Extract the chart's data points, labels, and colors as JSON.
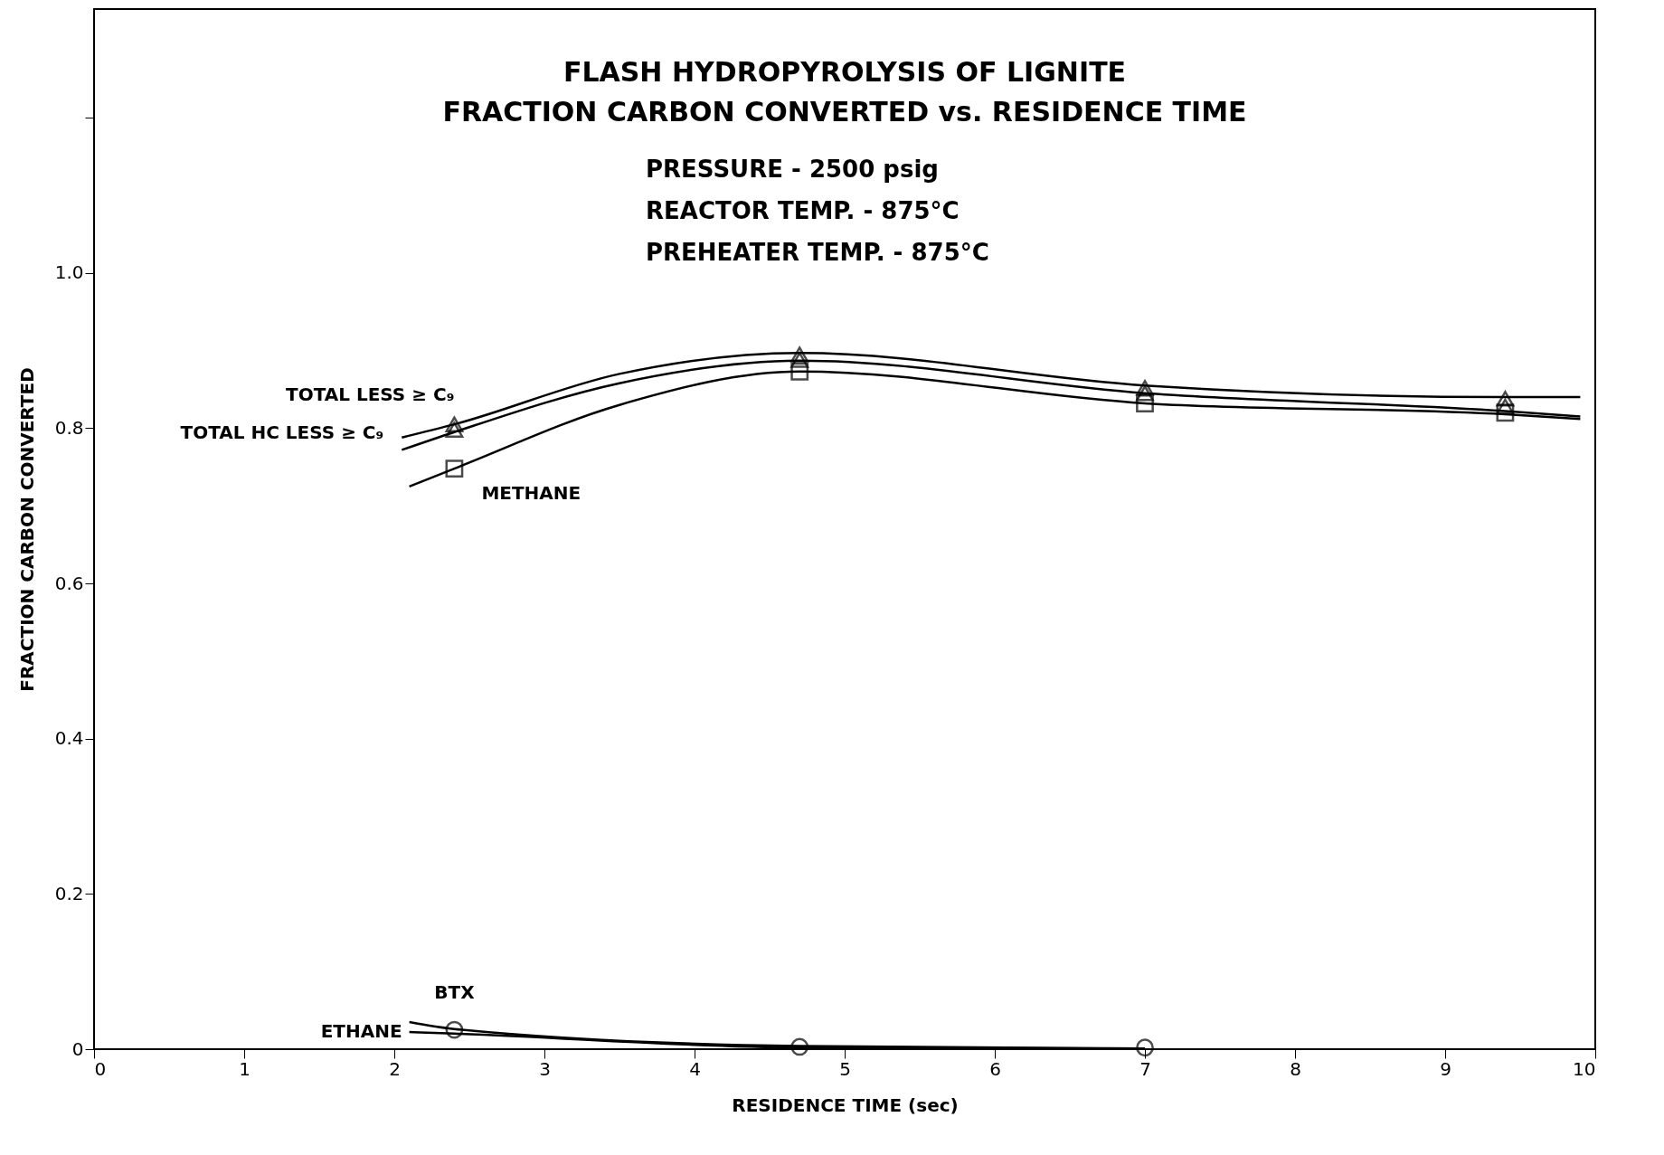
{
  "chart_data": {
    "type": "line",
    "title": [
      "FLASH HYDROPYROLYSIS OF LIGNITE",
      "FRACTION CARBON CONVERTED vs. RESIDENCE TIME"
    ],
    "subtitle": [
      "PRESSURE - 2500 psig",
      "REACTOR TEMP. - 875°C",
      "PREHEATER TEMP. - 875°C"
    ],
    "xlabel": "RESIDENCE TIME (sec)",
    "ylabel": "FRACTION CARBON CONVERTED",
    "xlim": [
      0,
      10
    ],
    "xticks": [
      0,
      1,
      2,
      3,
      4,
      5,
      6,
      7,
      8,
      9,
      10
    ],
    "ylim": [
      0,
      1.34
    ],
    "yticks": [
      0,
      0.2,
      0.4,
      0.6,
      0.8,
      {
        "value": 1.0,
        "label": "1.0"
      },
      {
        "value": 1.2,
        "label": null
      }
    ],
    "grid": false,
    "line_style": "solid",
    "series": [
      {
        "name": "TOTAL LESS ≥ C₉",
        "marker": "none",
        "color": "#000000",
        "x": [
          2.05,
          2.4,
          3.5,
          4.7,
          7,
          9.4,
          9.9
        ],
        "values": [
          0.788,
          0.805,
          0.87,
          0.897,
          0.855,
          0.84,
          0.84
        ]
      },
      {
        "name": "TOTAL HC LESS ≥ C₉",
        "marker": "none",
        "color": "#000000",
        "x": [
          2.05,
          2.4,
          3.5,
          4.7,
          7,
          9.4,
          9.9
        ],
        "values": [
          0.772,
          0.795,
          0.858,
          0.887,
          0.845,
          0.822,
          0.815
        ]
      },
      {
        "name": "METHANE",
        "marker": "none",
        "color": "#000000",
        "x": [
          2.1,
          2.4,
          3.5,
          4.7,
          7,
          9.4,
          9.9
        ],
        "values": [
          0.725,
          0.748,
          0.83,
          0.873,
          0.832,
          0.818,
          0.812
        ]
      },
      {
        "name": "BTX",
        "marker": "none",
        "color": "#000000",
        "x": [
          2.1,
          2.4,
          4.7,
          7
        ],
        "values": [
          0.035,
          0.026,
          0.004,
          0.001
        ]
      },
      {
        "name": "ETHANE",
        "marker": "none",
        "color": "#000000",
        "x": [
          2.1,
          2.4,
          4.7,
          7
        ],
        "values": [
          0.022,
          0.02,
          0.002,
          0.001
        ]
      },
      {
        "type": "scatter",
        "marker": "triangle",
        "color": "#000000",
        "x": [
          2.4,
          4.7,
          7,
          9.4
        ],
        "values": [
          0.805,
          0.895,
          0.852,
          0.838
        ]
      },
      {
        "type": "scatter",
        "marker": "triangle",
        "color": "#000000",
        "x": [
          2.4,
          4.7,
          7,
          9.4
        ],
        "values": [
          0.798,
          0.888,
          0.845,
          0.828
        ]
      },
      {
        "type": "scatter",
        "marker": "square",
        "color": "#000000",
        "x": [
          2.4,
          4.7,
          7,
          9.4
        ],
        "values": [
          0.748,
          0.873,
          0.832,
          0.82
        ]
      },
      {
        "type": "scatter",
        "marker": "circle",
        "color": "#000000",
        "x": [
          2.4,
          4.7,
          7
        ],
        "values": [
          0.025,
          0.003,
          0.002
        ]
      }
    ]
  }
}
